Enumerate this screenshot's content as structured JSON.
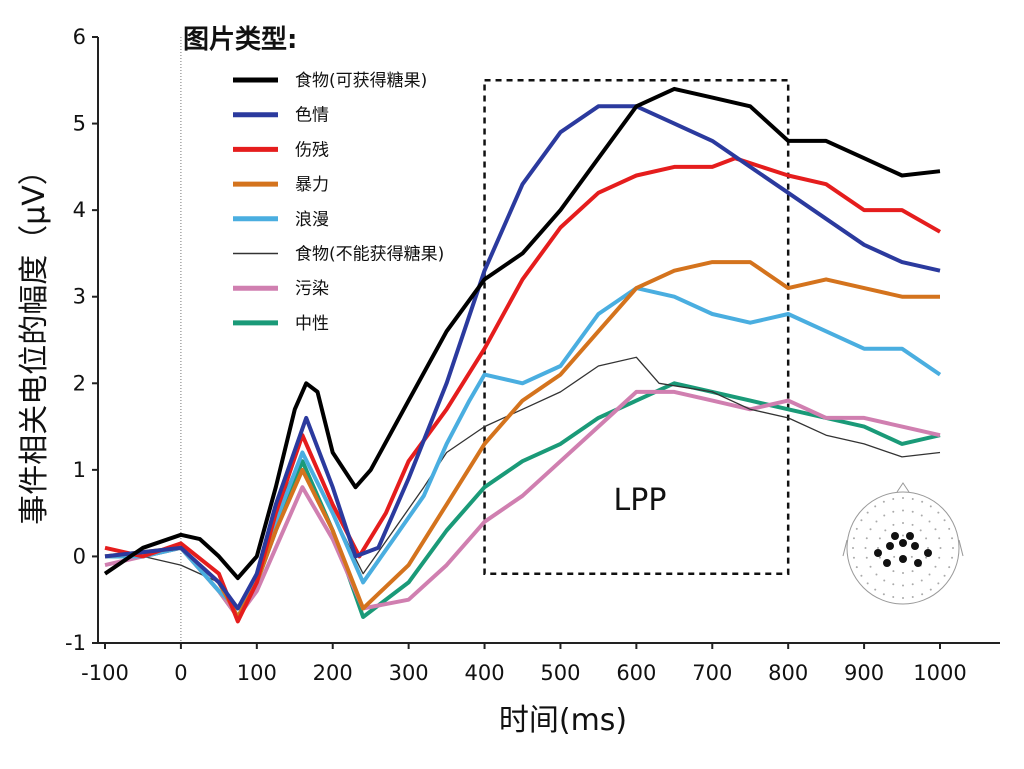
{
  "chart_data": {
    "type": "line",
    "xlabel": "时间(ms)",
    "ylabel": "事件相关电位的幅度（μV）",
    "xlim": [
      -100,
      1000
    ],
    "ylim": [
      -1,
      6
    ],
    "xticks": [
      "-100",
      "0",
      "100",
      "200",
      "300",
      "400",
      "500",
      "600",
      "700",
      "800",
      "900",
      "1000"
    ],
    "yticks": [
      "-1",
      "0",
      "1",
      "2",
      "3",
      "4",
      "5",
      "6"
    ],
    "grid": false,
    "legend": {
      "title": "图片类型:",
      "placement": "top-left"
    },
    "annotation": {
      "label": "LPP",
      "x_range": [
        400,
        800
      ],
      "y_range": [
        -0.2,
        5.5
      ]
    },
    "stimulus_onset_x": 0,
    "series": [
      {
        "name": "食物(可获得糖果)",
        "color": "#000000",
        "width": "thick",
        "x": [
          -100,
          -50,
          0,
          25,
          50,
          75,
          100,
          125,
          150,
          165,
          180,
          200,
          230,
          250,
          300,
          350,
          400,
          450,
          500,
          550,
          600,
          650,
          700,
          750,
          800,
          850,
          900,
          950,
          1000
        ],
        "y": [
          -0.2,
          0.1,
          0.25,
          0.2,
          0,
          -0.25,
          0,
          0.8,
          1.7,
          2.0,
          1.9,
          1.2,
          0.8,
          1.0,
          1.8,
          2.6,
          3.2,
          3.5,
          4.0,
          4.6,
          5.2,
          5.4,
          5.3,
          5.2,
          4.8,
          4.8,
          4.6,
          4.4,
          4.45
        ]
      },
      {
        "name": "色情",
        "color": "#2b3a9e",
        "width": "thick",
        "x": [
          -100,
          -50,
          0,
          50,
          75,
          100,
          125,
          165,
          200,
          230,
          260,
          300,
          350,
          400,
          450,
          500,
          550,
          600,
          650,
          700,
          750,
          800,
          850,
          900,
          950,
          1000
        ],
        "y": [
          0.0,
          0.05,
          0.1,
          -0.3,
          -0.6,
          -0.2,
          0.6,
          1.6,
          0.8,
          0.0,
          0.1,
          0.9,
          2.0,
          3.3,
          4.3,
          4.9,
          5.2,
          5.2,
          5.0,
          4.8,
          4.5,
          4.2,
          3.9,
          3.6,
          3.4,
          3.3
        ]
      },
      {
        "name": "伤残",
        "color": "#e51d1d",
        "width": "thick",
        "x": [
          -100,
          -50,
          0,
          50,
          75,
          100,
          125,
          160,
          200,
          235,
          270,
          300,
          350,
          400,
          450,
          500,
          550,
          600,
          650,
          700,
          730,
          800,
          850,
          900,
          950,
          1000
        ],
        "y": [
          0.1,
          0.0,
          0.15,
          -0.2,
          -0.75,
          -0.3,
          0.5,
          1.4,
          0.6,
          0.0,
          0.5,
          1.1,
          1.7,
          2.4,
          3.2,
          3.8,
          4.2,
          4.4,
          4.5,
          4.5,
          4.6,
          4.4,
          4.3,
          4.0,
          4.0,
          3.75
        ]
      },
      {
        "name": "暴力",
        "color": "#d4731d",
        "width": "thick",
        "x": [
          -100,
          -50,
          0,
          50,
          75,
          100,
          125,
          160,
          200,
          240,
          300,
          350,
          400,
          450,
          500,
          550,
          600,
          650,
          700,
          750,
          800,
          850,
          900,
          950,
          1000
        ],
        "y": [
          0.0,
          0.05,
          0.1,
          -0.3,
          -0.7,
          -0.3,
          0.3,
          1.0,
          0.3,
          -0.6,
          -0.1,
          0.6,
          1.3,
          1.8,
          2.1,
          2.6,
          3.1,
          3.3,
          3.4,
          3.4,
          3.1,
          3.2,
          3.1,
          3.0,
          3.0
        ]
      },
      {
        "name": "浪漫",
        "color": "#4aaee0",
        "width": "thick",
        "x": [
          -100,
          -50,
          0,
          50,
          75,
          100,
          125,
          160,
          200,
          240,
          280,
          320,
          350,
          380,
          400,
          450,
          500,
          550,
          600,
          650,
          700,
          750,
          800,
          850,
          900,
          950,
          1000
        ],
        "y": [
          0.0,
          0.0,
          0.1,
          -0.4,
          -0.6,
          -0.3,
          0.4,
          1.2,
          0.5,
          -0.3,
          0.2,
          0.7,
          1.3,
          1.8,
          2.1,
          2.0,
          2.2,
          2.8,
          3.1,
          3.0,
          2.8,
          2.7,
          2.8,
          2.6,
          2.4,
          2.4,
          2.1
        ]
      },
      {
        "name": "食物(不能获得糖果)",
        "color": "#333333",
        "width": "thin",
        "x": [
          -100,
          -50,
          0,
          50,
          75,
          100,
          125,
          160,
          200,
          240,
          280,
          320,
          350,
          400,
          450,
          500,
          550,
          600,
          630,
          700,
          750,
          800,
          850,
          900,
          950,
          1000
        ],
        "y": [
          0.0,
          0.0,
          -0.1,
          -0.3,
          -0.6,
          -0.2,
          0.5,
          1.2,
          0.5,
          -0.2,
          0.3,
          0.8,
          1.2,
          1.5,
          1.7,
          1.9,
          2.2,
          2.3,
          2.0,
          1.9,
          1.7,
          1.6,
          1.4,
          1.3,
          1.15,
          1.2
        ]
      },
      {
        "name": "污染",
        "color": "#d07fb0",
        "width": "thick",
        "x": [
          -100,
          -50,
          0,
          50,
          75,
          100,
          125,
          160,
          200,
          240,
          300,
          350,
          400,
          450,
          500,
          550,
          600,
          650,
          700,
          750,
          800,
          850,
          900,
          950,
          1000
        ],
        "y": [
          -0.1,
          0.0,
          0.1,
          -0.4,
          -0.7,
          -0.4,
          0.1,
          0.8,
          0.2,
          -0.6,
          -0.5,
          -0.1,
          0.4,
          0.7,
          1.1,
          1.5,
          1.9,
          1.9,
          1.8,
          1.7,
          1.8,
          1.6,
          1.6,
          1.5,
          1.4
        ]
      },
      {
        "name": "中性",
        "color": "#1a9a78",
        "width": "thick",
        "x": [
          -100,
          -50,
          0,
          50,
          75,
          100,
          125,
          160,
          200,
          240,
          300,
          350,
          400,
          450,
          500,
          550,
          600,
          650,
          700,
          750,
          800,
          850,
          900,
          950,
          1000
        ],
        "y": [
          0.0,
          0.0,
          0.1,
          -0.4,
          -0.7,
          -0.3,
          0.3,
          1.1,
          0.3,
          -0.7,
          -0.3,
          0.3,
          0.8,
          1.1,
          1.3,
          1.6,
          1.8,
          2.0,
          1.9,
          1.8,
          1.7,
          1.6,
          1.5,
          1.3,
          1.4
        ]
      }
    ]
  }
}
